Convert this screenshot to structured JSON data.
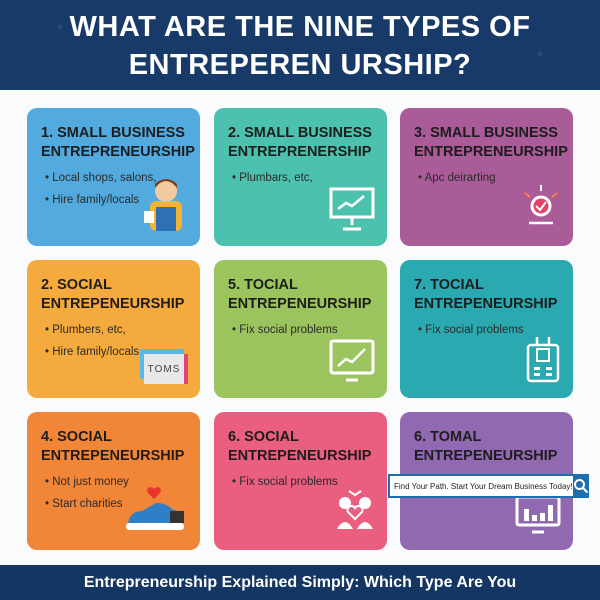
{
  "title_lines": [
    "WHAT ARE THE NINE TYPES OF",
    "ENTREPEREN URSHIP?"
  ],
  "cards": [
    {
      "title": [
        "1. SMALL BUSINESS",
        "ENTREPRENEURSHIP"
      ],
      "bullets": [
        "Local shops, salons,",
        "Hire family/locals"
      ],
      "color": "#52aade",
      "icon": "shopkeeper-icon"
    },
    {
      "title": [
        "2. SMALL BUSINESS",
        "ENTREPRENERSHIP"
      ],
      "bullets": [
        "Plumbars, etc,"
      ],
      "color": "#4cc1ad",
      "icon": "chart-presentation-icon"
    },
    {
      "title": [
        "3. SMALL BUSINESS",
        "ENTREPRENEURSHIP"
      ],
      "bullets": [
        "Apc deirarting"
      ],
      "color": "#a95c98",
      "icon": "target-check-icon"
    },
    {
      "title": [
        "2. SOCIAL",
        "ENTREPENEURSHIP"
      ],
      "bullets": [
        "Plumbers, etc,",
        "Hire family/locals"
      ],
      "color": "#f5aa3d",
      "icon": "toms-logo-icon",
      "icon_text": "TOMS"
    },
    {
      "title": [
        "5. TOCIAL",
        "ENTREPENEURSHIP"
      ],
      "bullets": [
        "Fix social problems"
      ],
      "color": "#9cc45e",
      "icon": "monitor-chart-icon"
    },
    {
      "title": [
        "7. TOCIAL",
        "ENTREPENEURSHIP"
      ],
      "bullets": [
        "Fix social problems"
      ],
      "color": "#2ba9b1",
      "icon": "robot-icon"
    },
    {
      "title": [
        "4. SOCIAL",
        "ENTREPENEURSHIP"
      ],
      "bullets": [
        "Not just money",
        "Start charities"
      ],
      "color": "#f28638",
      "icon": "shoe-heart-icon"
    },
    {
      "title": [
        "6. SOCIAL",
        "ENTREPENEURSHIP"
      ],
      "bullets": [
        "Fix social problems"
      ],
      "color": "#ea5e80",
      "icon": "community-heart-icon"
    },
    {
      "title": [
        "6. TOMAL",
        "ENTREPENEURSHIP"
      ],
      "bullets": [],
      "color": "#9069b0",
      "icon": "monitor-bars-icon"
    }
  ],
  "search": {
    "text": "Find Your Path. Start Your Dream Business Today!",
    "icon": "search-icon"
  },
  "footer": "Entrepreneurship Explained Simply: Which Type Are You"
}
